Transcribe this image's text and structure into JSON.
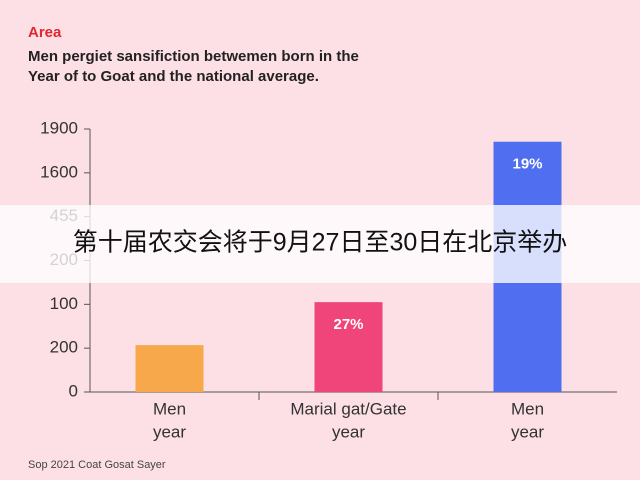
{
  "chart_data": {
    "type": "bar",
    "kicker": "Area",
    "title_lines": [
      "Men pergiet sansifiction betwemen born in the",
      "Year of to Goat and the national average."
    ],
    "categories": [
      [
        "Men",
        "year"
      ],
      [
        "Marial gat/Gate",
        "year"
      ],
      [
        "Men",
        "year"
      ]
    ],
    "values": [
      1.07,
      2.05,
      5.71
    ],
    "colors": [
      "#f7a84a",
      "#f0457a",
      "#4f6ef0"
    ],
    "annotations": [
      null,
      "27%",
      "19%"
    ],
    "ylim": [
      0,
      6
    ],
    "yticks": [
      {
        "value": 0,
        "label": "0"
      },
      {
        "value": 1,
        "label": "200"
      },
      {
        "value": 2,
        "label": "100"
      },
      {
        "value": 3,
        "label": "200"
      },
      {
        "value": 4,
        "label": "455"
      },
      {
        "value": 5,
        "label": "1600"
      },
      {
        "value": 6,
        "label": "1900"
      }
    ],
    "source": "Sop 2021 Coat Gosat Sayer",
    "overlay_text": "第十届农交会将于9月27日至30日在北京举办"
  }
}
